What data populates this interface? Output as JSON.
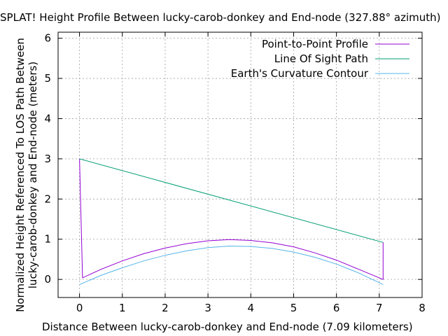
{
  "chart_data": {
    "type": "line",
    "title": "SPLAT! Height Profile Between lucky-carob-donkey and End-node (327.88° azimuth)",
    "xlabel": "Distance Between lucky-carob-donkey and End-node (7.09 kilometers)",
    "ylabel_lines": [
      "Normalized Height Referenced To LOS Path Between",
      "lucky-carob-donkey and End-node (meters)"
    ],
    "xlim": [
      -0.5,
      8
    ],
    "ylim": [
      -0.45,
      6.15
    ],
    "x_ticks": [
      "0",
      "1",
      "2",
      "3",
      "4",
      "5",
      "6",
      "7",
      "8"
    ],
    "y_ticks": [
      "0",
      "1",
      "2",
      "3",
      "4",
      "5",
      "6"
    ],
    "grid": true,
    "legend_placement": "top-right",
    "series": [
      {
        "name": "Point-to-Point Profile",
        "color": "#9400d3",
        "x": [
          0,
          0.07,
          0.5,
          1.0,
          1.5,
          2.0,
          2.5,
          3.0,
          3.5,
          4.0,
          4.5,
          5.0,
          5.5,
          6.0,
          6.5,
          7.0,
          7.09,
          7.09
        ],
        "y": [
          3.0,
          0.04,
          0.25,
          0.46,
          0.64,
          0.78,
          0.89,
          0.96,
          0.99,
          0.97,
          0.91,
          0.81,
          0.66,
          0.48,
          0.26,
          0.04,
          0.0,
          0.92
        ]
      },
      {
        "name": "Line Of Sight Path",
        "color": "#009e73",
        "x": [
          0,
          7.09
        ],
        "y": [
          3.0,
          0.92
        ]
      },
      {
        "name": "Earth's Curvature Contour",
        "color": "#56b4e9",
        "x": [
          0,
          0.5,
          1.0,
          1.5,
          2.0,
          2.5,
          3.0,
          3.5,
          4.0,
          4.5,
          5.0,
          5.5,
          6.0,
          6.5,
          7.0,
          7.09
        ],
        "y": [
          -0.13,
          0.1,
          0.29,
          0.46,
          0.6,
          0.71,
          0.79,
          0.83,
          0.82,
          0.77,
          0.68,
          0.55,
          0.38,
          0.17,
          -0.08,
          -0.13
        ]
      }
    ]
  }
}
